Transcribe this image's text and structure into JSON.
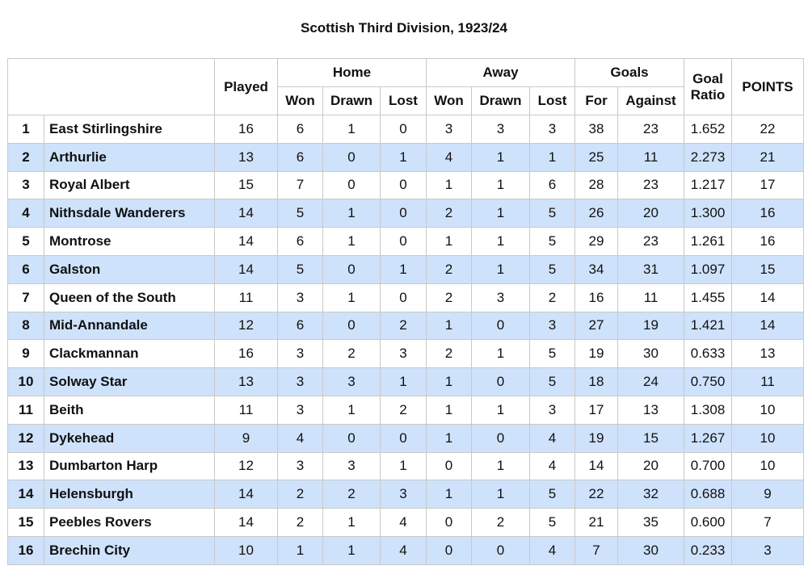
{
  "title": "Scottish Third Division, 1923/24",
  "header": {
    "played": "Played",
    "home": "Home",
    "away": "Away",
    "goals": "Goals",
    "goal_ratio": "Goal Ratio",
    "points": "POINTS",
    "won": "Won",
    "drawn": "Drawn",
    "lost": "Lost",
    "for": "For",
    "against": "Against"
  },
  "rows": [
    {
      "pos": "1",
      "team": "East Stirlingshire",
      "played": "16",
      "hw": "6",
      "hd": "1",
      "hl": "0",
      "aw": "3",
      "ad": "3",
      "al": "3",
      "gf": "38",
      "ga": "23",
      "ratio": "1.652",
      "pts": "22"
    },
    {
      "pos": "2",
      "team": "Arthurlie",
      "played": "13",
      "hw": "6",
      "hd": "0",
      "hl": "1",
      "aw": "4",
      "ad": "1",
      "al": "1",
      "gf": "25",
      "ga": "11",
      "ratio": "2.273",
      "pts": "21"
    },
    {
      "pos": "3",
      "team": "Royal Albert",
      "played": "15",
      "hw": "7",
      "hd": "0",
      "hl": "0",
      "aw": "1",
      "ad": "1",
      "al": "6",
      "gf": "28",
      "ga": "23",
      "ratio": "1.217",
      "pts": "17"
    },
    {
      "pos": "4",
      "team": "Nithsdale Wanderers",
      "played": "14",
      "hw": "5",
      "hd": "1",
      "hl": "0",
      "aw": "2",
      "ad": "1",
      "al": "5",
      "gf": "26",
      "ga": "20",
      "ratio": "1.300",
      "pts": "16"
    },
    {
      "pos": "5",
      "team": "Montrose",
      "played": "14",
      "hw": "6",
      "hd": "1",
      "hl": "0",
      "aw": "1",
      "ad": "1",
      "al": "5",
      "gf": "29",
      "ga": "23",
      "ratio": "1.261",
      "pts": "16"
    },
    {
      "pos": "6",
      "team": "Galston",
      "played": "14",
      "hw": "5",
      "hd": "0",
      "hl": "1",
      "aw": "2",
      "ad": "1",
      "al": "5",
      "gf": "34",
      "ga": "31",
      "ratio": "1.097",
      "pts": "15"
    },
    {
      "pos": "7",
      "team": "Queen of the South",
      "played": "11",
      "hw": "3",
      "hd": "1",
      "hl": "0",
      "aw": "2",
      "ad": "3",
      "al": "2",
      "gf": "16",
      "ga": "11",
      "ratio": "1.455",
      "pts": "14"
    },
    {
      "pos": "8",
      "team": "Mid-Annandale",
      "played": "12",
      "hw": "6",
      "hd": "0",
      "hl": "2",
      "aw": "1",
      "ad": "0",
      "al": "3",
      "gf": "27",
      "ga": "19",
      "ratio": "1.421",
      "pts": "14"
    },
    {
      "pos": "9",
      "team": "Clackmannan",
      "played": "16",
      "hw": "3",
      "hd": "2",
      "hl": "3",
      "aw": "2",
      "ad": "1",
      "al": "5",
      "gf": "19",
      "ga": "30",
      "ratio": "0.633",
      "pts": "13"
    },
    {
      "pos": "10",
      "team": "Solway Star",
      "played": "13",
      "hw": "3",
      "hd": "3",
      "hl": "1",
      "aw": "1",
      "ad": "0",
      "al": "5",
      "gf": "18",
      "ga": "24",
      "ratio": "0.750",
      "pts": "11"
    },
    {
      "pos": "11",
      "team": "Beith",
      "played": "11",
      "hw": "3",
      "hd": "1",
      "hl": "2",
      "aw": "1",
      "ad": "1",
      "al": "3",
      "gf": "17",
      "ga": "13",
      "ratio": "1.308",
      "pts": "10"
    },
    {
      "pos": "12",
      "team": "Dykehead",
      "played": "9",
      "hw": "4",
      "hd": "0",
      "hl": "0",
      "aw": "1",
      "ad": "0",
      "al": "4",
      "gf": "19",
      "ga": "15",
      "ratio": "1.267",
      "pts": "10"
    },
    {
      "pos": "13",
      "team": "Dumbarton Harp",
      "played": "12",
      "hw": "3",
      "hd": "3",
      "hl": "1",
      "aw": "0",
      "ad": "1",
      "al": "4",
      "gf": "14",
      "ga": "20",
      "ratio": "0.700",
      "pts": "10"
    },
    {
      "pos": "14",
      "team": "Helensburgh",
      "played": "14",
      "hw": "2",
      "hd": "2",
      "hl": "3",
      "aw": "1",
      "ad": "1",
      "al": "5",
      "gf": "22",
      "ga": "32",
      "ratio": "0.688",
      "pts": "9"
    },
    {
      "pos": "15",
      "team": "Peebles Rovers",
      "played": "14",
      "hw": "2",
      "hd": "1",
      "hl": "4",
      "aw": "0",
      "ad": "2",
      "al": "5",
      "gf": "21",
      "ga": "35",
      "ratio": "0.600",
      "pts": "7"
    },
    {
      "pos": "16",
      "team": "Brechin City",
      "played": "10",
      "hw": "1",
      "hd": "1",
      "hl": "4",
      "aw": "0",
      "ad": "0",
      "al": "4",
      "gf": "7",
      "ga": "30",
      "ratio": "0.233",
      "pts": "3"
    }
  ],
  "colors": {
    "alt_row": "#cfe2fb",
    "border": "#c9c9c9",
    "background": "#ffffff"
  }
}
